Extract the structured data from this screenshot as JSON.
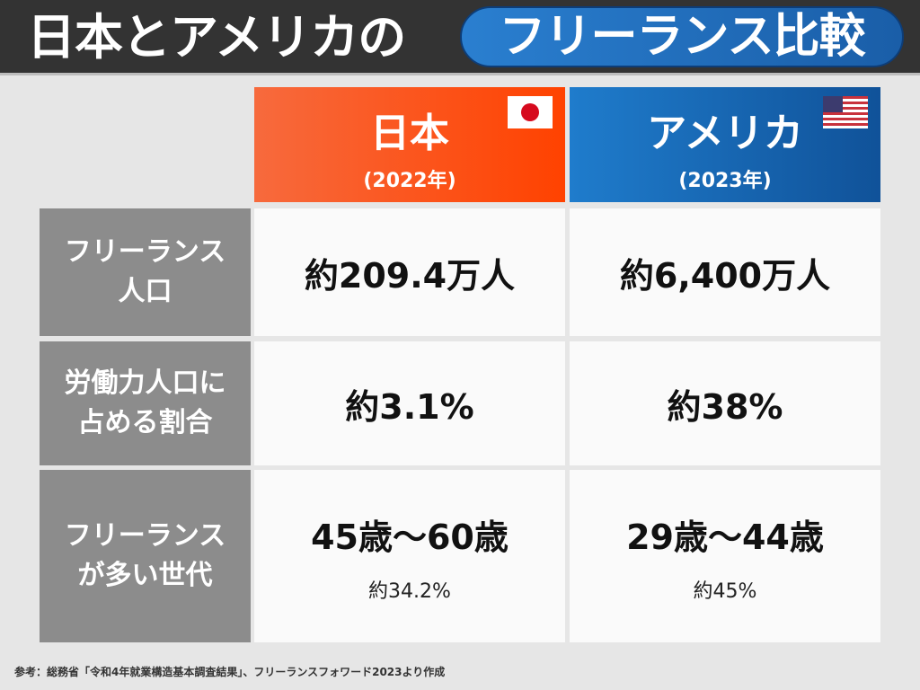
{
  "title": {
    "prefix": "日本とアメリカの",
    "highlight": "フリーランス比較"
  },
  "columns": [
    {
      "name": "日本",
      "year": "(2022年)",
      "flag_icon": "japan-flag-icon",
      "color": "#ff4a10"
    },
    {
      "name": "アメリカ",
      "year": "(2023年)",
      "flag_icon": "us-flag-icon",
      "color": "#1a64ad"
    }
  ],
  "rows": [
    {
      "label_line1": "フリーランス",
      "label_line2": "人口",
      "jp": {
        "value": "約209.4万人"
      },
      "us": {
        "value": "約6,400万人"
      }
    },
    {
      "label_line1": "労働力人口に",
      "label_line2": "占める割合",
      "jp": {
        "value": "約3.1%"
      },
      "us": {
        "value": "約38%"
      }
    },
    {
      "label_line1": "フリーランス",
      "label_line2": "が多い世代",
      "jp": {
        "value": "45歳〜60歳",
        "sub": "約34.2%"
      },
      "us": {
        "value": "29歳〜44歳",
        "sub": "約45%"
      }
    }
  ],
  "footer": "参考：総務省「令和4年就業構造基本調査結果」、フリーランスフォワード2023より作成"
}
